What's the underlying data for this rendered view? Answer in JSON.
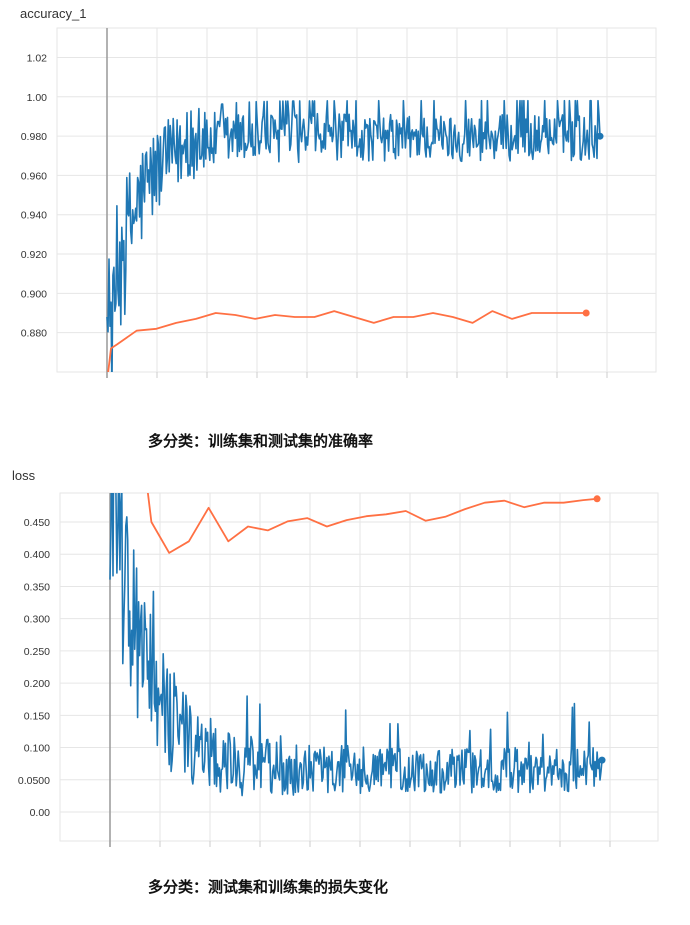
{
  "charts": [
    {
      "type": "line",
      "title": "accuracy_1",
      "caption": "多分类：训练集和测试集的准确率",
      "ylim": [
        0.86,
        1.035
      ],
      "yticks": [
        "0.880",
        "0.900",
        "0.920",
        "0.940",
        "0.960",
        "0.980",
        "1.00",
        "1.02"
      ],
      "ytick_values": [
        0.88,
        0.9,
        0.92,
        0.94,
        0.96,
        0.98,
        1.0,
        1.02
      ],
      "xlim": [
        0,
        500
      ],
      "grid": true,
      "series": [
        {
          "color": "#1f77b4",
          "gen": {
            "kind": "acc_train",
            "n": 500
          }
        },
        {
          "color": "#ff7043",
          "x": [
            0,
            4,
            10,
            30,
            50,
            70,
            90,
            110,
            130,
            150,
            170,
            190,
            210,
            230,
            250,
            270,
            290,
            310,
            330,
            350,
            370,
            390,
            410,
            430,
            450,
            470,
            485
          ],
          "y": [
            0.855,
            0.872,
            0.874,
            0.881,
            0.882,
            0.885,
            0.887,
            0.89,
            0.889,
            0.887,
            0.889,
            0.888,
            0.888,
            0.891,
            0.888,
            0.885,
            0.888,
            0.888,
            0.89,
            0.888,
            0.885,
            0.891,
            0.887,
            0.89,
            0.89,
            0.89,
            0.89
          ]
        }
      ]
    },
    {
      "type": "line",
      "title": "loss",
      "caption": "多分类：测试集和训练集的损失变化",
      "ylim": [
        -0.045,
        0.495
      ],
      "yticks": [
        "0.00",
        "0.0500",
        "0.100",
        "0.150",
        "0.200",
        "0.250",
        "0.300",
        "0.350",
        "0.400",
        "0.450"
      ],
      "ytick_values": [
        0.0,
        0.05,
        0.1,
        0.15,
        0.2,
        0.25,
        0.3,
        0.35,
        0.4,
        0.45
      ],
      "xlim": [
        0,
        500
      ],
      "grid": true,
      "series": [
        {
          "color": "#1f77b4",
          "gen": {
            "kind": "loss_train",
            "n": 500
          }
        },
        {
          "color": "#ff7043",
          "x": [
            38,
            42,
            60,
            80,
            100,
            120,
            140,
            160,
            180,
            200,
            220,
            240,
            260,
            280,
            300,
            320,
            340,
            360,
            380,
            400,
            420,
            440,
            460,
            480,
            494
          ],
          "y": [
            0.5,
            0.45,
            0.402,
            0.42,
            0.472,
            0.42,
            0.443,
            0.437,
            0.451,
            0.456,
            0.443,
            0.453,
            0.459,
            0.462,
            0.467,
            0.452,
            0.458,
            0.47,
            0.48,
            0.483,
            0.473,
            0.48,
            0.48,
            0.484,
            0.486
          ]
        }
      ]
    }
  ]
}
